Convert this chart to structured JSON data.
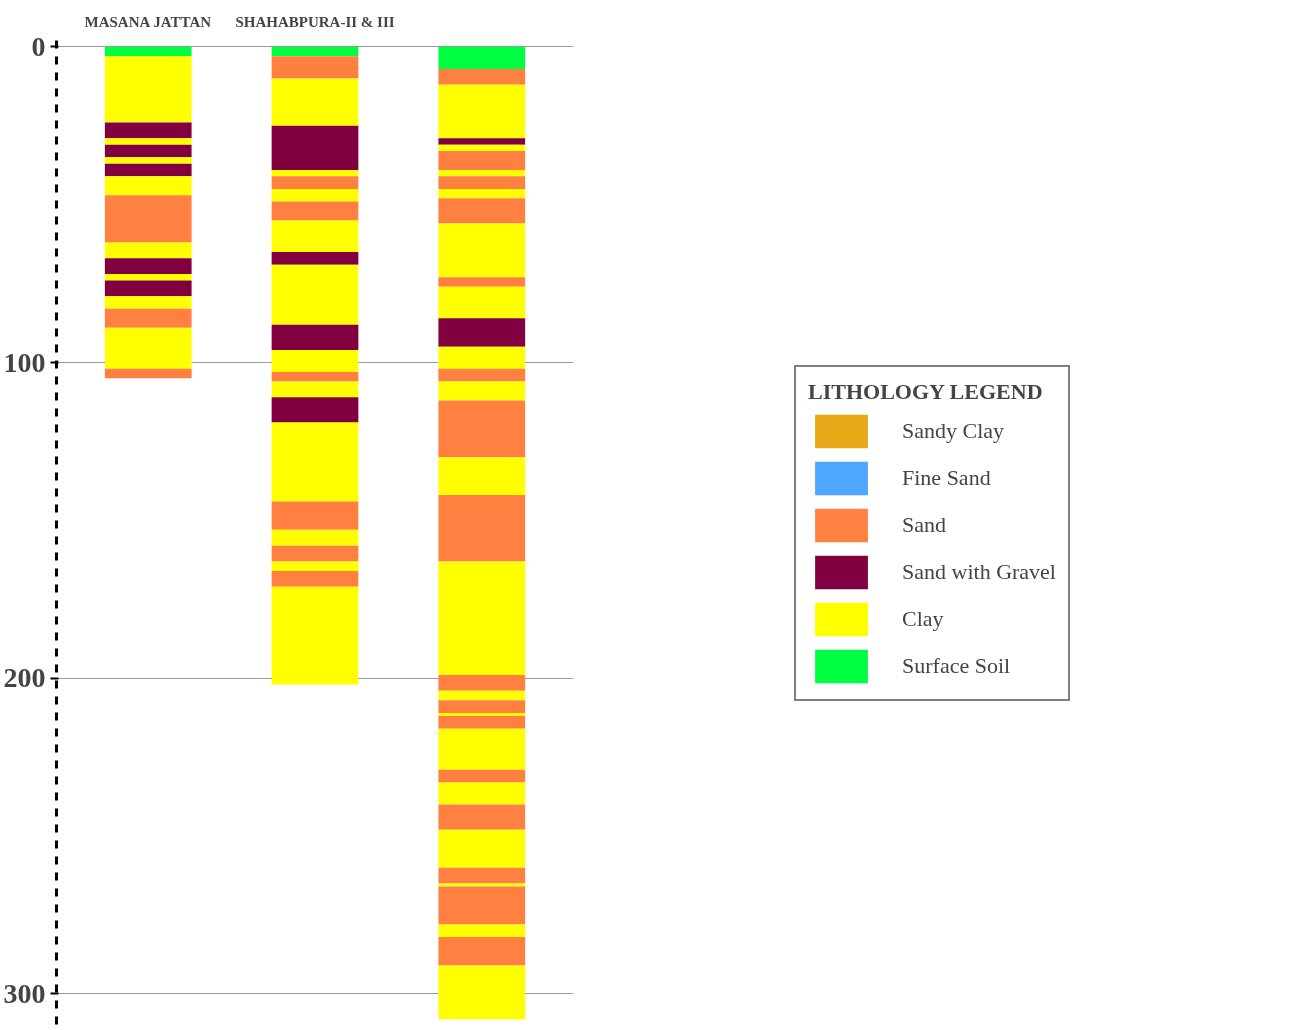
{
  "chart_data": {
    "type": "bar",
    "stacked": true,
    "categories": [
      "MASANA JATTAN",
      "SHAHABPURA-II & III",
      null
    ],
    "ylim": [
      310,
      -2
    ],
    "yticks": [
      0,
      100,
      200,
      300
    ],
    "grid": "y",
    "legend": "right",
    "legend_title": "LITHOLOGY LEGEND",
    "series": [
      {
        "name": "Sandy Clay",
        "color": "#e6a817",
        "values": [
          null,
          null,
          null
        ]
      },
      {
        "name": "Fine Sand",
        "color": "#4da6ff",
        "values": [
          null,
          null,
          null
        ]
      },
      {
        "name": "Sand",
        "color": "#ff8040",
        "values": [
          null,
          null,
          null
        ]
      },
      {
        "name": "Sand with Gravel",
        "color": "#800040",
        "values": [
          null,
          null,
          null
        ]
      },
      {
        "name": "Clay",
        "color": "#ffff00",
        "values": [
          null,
          null,
          null
        ]
      },
      {
        "name": "Surface Soil",
        "color": "#00ff40",
        "values": [
          null,
          null,
          null
        ]
      },
      {
        "values": [
          3,
          3,
          7
        ],
        "colors": [
          "#00ff40",
          "#00ff40",
          "#00ff40"
        ]
      },
      {
        "values": [
          21,
          7,
          5
        ],
        "colors": [
          "#ffff00",
          "#ff8040",
          "#ff8040"
        ]
      },
      {
        "values": [
          5,
          15,
          17
        ],
        "colors": [
          "#800040",
          "#ffff00",
          "#ffff00"
        ]
      },
      {
        "values": [
          2,
          14,
          2
        ],
        "colors": [
          "#ffff00",
          "#800040",
          "#800040"
        ]
      },
      {
        "values": [
          4,
          2,
          2
        ],
        "colors": [
          "#800040",
          "#ffff00",
          "#ffff00"
        ]
      },
      {
        "values": [
          2,
          4,
          6
        ],
        "colors": [
          "#ffff00",
          "#ff8040",
          "#ff8040"
        ]
      },
      {
        "values": [
          4,
          4,
          2
        ],
        "colors": [
          "#800040",
          "#ffff00",
          "#ffff00"
        ]
      },
      {
        "values": [
          6,
          6,
          4
        ],
        "colors": [
          "#ffff00",
          "#ff8040",
          "#ff8040"
        ]
      },
      {
        "values": [
          15,
          10,
          3
        ],
        "colors": [
          "#ff8040",
          "#ffff00",
          "#ffff00"
        ]
      },
      {
        "values": [
          5,
          4,
          8
        ],
        "colors": [
          "#ffff00",
          "#800040",
          "#ff8040"
        ]
      },
      {
        "values": [
          5,
          19,
          17
        ],
        "colors": [
          "#800040",
          "#ffff00",
          "#ffff00"
        ]
      },
      {
        "values": [
          2,
          8,
          3
        ],
        "colors": [
          "#ffff00",
          "#800040",
          "#ff8040"
        ]
      },
      {
        "values": [
          5,
          7,
          10
        ],
        "colors": [
          "#800040",
          "#ffff00",
          "#ffff00"
        ]
      },
      {
        "values": [
          4,
          3,
          9
        ],
        "colors": [
          "#ffff00",
          "#ff8040",
          "#800040"
        ]
      },
      {
        "values": [
          6,
          5,
          7
        ],
        "colors": [
          "#ff8040",
          "#ffff00",
          "#ffff00"
        ]
      },
      {
        "values": [
          13,
          8,
          4
        ],
        "colors": [
          "#ffff00",
          "#800040",
          "#ff8040"
        ]
      },
      {
        "values": [
          3,
          25,
          6
        ],
        "colors": [
          "#ff8040",
          "#ffff00",
          "#ffff00"
        ]
      },
      {
        "values": [
          null,
          9,
          18
        ],
        "colors": [
          null,
          "#ff8040",
          "#ff8040"
        ]
      },
      {
        "values": [
          null,
          5,
          12
        ],
        "colors": [
          null,
          "#ffff00",
          "#ffff00"
        ]
      },
      {
        "values": [
          null,
          5,
          21
        ],
        "colors": [
          null,
          "#ff8040",
          "#ff8040"
        ]
      },
      {
        "values": [
          null,
          3,
          36
        ],
        "colors": [
          null,
          "#ffff00",
          "#ffff00"
        ]
      },
      {
        "values": [
          null,
          5,
          5
        ],
        "colors": [
          null,
          "#ff8040",
          "#ff8040"
        ]
      },
      {
        "values": [
          null,
          31,
          3
        ],
        "colors": [
          null,
          "#ffff00",
          "#ffff00"
        ]
      },
      {
        "values": [
          null,
          null,
          4
        ],
        "colors": [
          null,
          null,
          "#ff8040"
        ]
      },
      {
        "values": [
          null,
          null,
          1
        ],
        "colors": [
          null,
          null,
          "#ffff00"
        ]
      },
      {
        "values": [
          null,
          null,
          4
        ],
        "colors": [
          null,
          null,
          "#ff8040"
        ]
      },
      {
        "values": [
          null,
          null,
          13
        ],
        "colors": [
          null,
          null,
          "#ffff00"
        ]
      },
      {
        "values": [
          null,
          null,
          4
        ],
        "colors": [
          null,
          null,
          "#ff8040"
        ]
      },
      {
        "values": [
          null,
          null,
          7
        ],
        "colors": [
          null,
          null,
          "#ffff00"
        ]
      },
      {
        "values": [
          null,
          null,
          8
        ],
        "colors": [
          null,
          null,
          "#ff8040"
        ]
      },
      {
        "values": [
          null,
          null,
          12
        ],
        "colors": [
          null,
          null,
          "#ffff00"
        ]
      },
      {
        "values": [
          null,
          null,
          5
        ],
        "colors": [
          null,
          null,
          "#ff8040"
        ]
      },
      {
        "values": [
          null,
          null,
          1
        ],
        "colors": [
          null,
          null,
          "#ffff00"
        ]
      },
      {
        "values": [
          null,
          null,
          12
        ],
        "colors": [
          null,
          null,
          "#ff8040"
        ]
      },
      {
        "values": [
          null,
          null,
          4
        ],
        "colors": [
          null,
          null,
          "#ffff00"
        ]
      },
      {
        "values": [
          null,
          null,
          9
        ],
        "colors": [
          null,
          null,
          "#ff8040"
        ]
      },
      {
        "values": [
          null,
          null,
          17
        ],
        "colors": [
          null,
          null,
          "#ffff00"
        ]
      }
    ]
  }
}
